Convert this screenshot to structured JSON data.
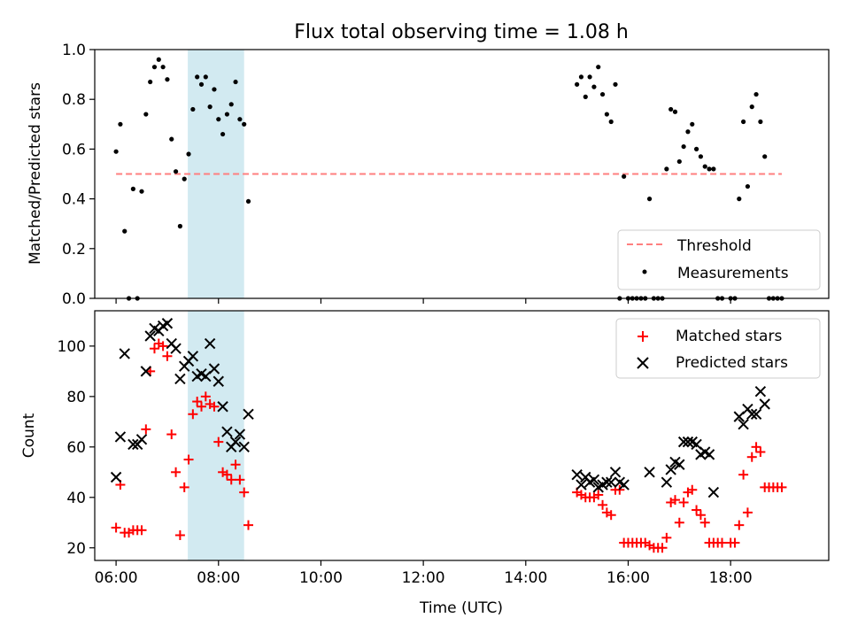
{
  "title": "Flux total observing time = 1.08 h",
  "colors": {
    "threshold": "#ff7f7f",
    "highlight": "#add8e6",
    "matched": "#ff0000",
    "predicted": "#000000",
    "measurement": "#000000"
  },
  "chart_data": [
    {
      "type": "scatter",
      "ylabel": "Matched/Predicted stars",
      "xlim": [
        "05:35",
        "19:55"
      ],
      "ylim": [
        0,
        1.0
      ],
      "y_ticks": [
        "0.0",
        "0.2",
        "0.4",
        "0.6",
        "0.8",
        "1.0"
      ],
      "highlight_span": [
        "07:24",
        "08:30"
      ],
      "legend_position": "bottom-right",
      "threshold": {
        "name": "Threshold",
        "value": 0.5,
        "x": [
          "06:00",
          "19:00"
        ]
      },
      "series": [
        {
          "name": "Measurements",
          "points": [
            [
              "06:00",
              0.59
            ],
            [
              "06:05",
              0.7
            ],
            [
              "06:10",
              0.27
            ],
            [
              "06:15",
              0.0
            ],
            [
              "06:20",
              0.44
            ],
            [
              "06:25",
              0.0
            ],
            [
              "06:30",
              0.43
            ],
            [
              "06:35",
              0.74
            ],
            [
              "06:40",
              0.87
            ],
            [
              "06:45",
              0.93
            ],
            [
              "06:50",
              0.96
            ],
            [
              "06:55",
              0.93
            ],
            [
              "07:00",
              0.88
            ],
            [
              "07:05",
              0.64
            ],
            [
              "07:10",
              0.51
            ],
            [
              "07:15",
              0.29
            ],
            [
              "07:20",
              0.48
            ],
            [
              "07:25",
              0.58
            ],
            [
              "07:30",
              0.76
            ],
            [
              "07:35",
              0.89
            ],
            [
              "07:40",
              0.86
            ],
            [
              "07:45",
              0.89
            ],
            [
              "07:50",
              0.77
            ],
            [
              "07:55",
              0.84
            ],
            [
              "08:00",
              0.72
            ],
            [
              "08:05",
              0.66
            ],
            [
              "08:10",
              0.74
            ],
            [
              "08:15",
              0.78
            ],
            [
              "08:20",
              0.87
            ],
            [
              "08:25",
              0.72
            ],
            [
              "08:30",
              0.7
            ],
            [
              "08:35",
              0.39
            ],
            [
              "15:00",
              0.86
            ],
            [
              "15:05",
              0.89
            ],
            [
              "15:10",
              0.81
            ],
            [
              "15:15",
              0.89
            ],
            [
              "15:20",
              0.85
            ],
            [
              "15:25",
              0.93
            ],
            [
              "15:30",
              0.82
            ],
            [
              "15:35",
              0.74
            ],
            [
              "15:40",
              0.71
            ],
            [
              "15:45",
              0.86
            ],
            [
              "15:50",
              0.0
            ],
            [
              "15:55",
              0.49
            ],
            [
              "16:00",
              0.0
            ],
            [
              "16:05",
              0.0
            ],
            [
              "16:10",
              0.0
            ],
            [
              "16:15",
              0.0
            ],
            [
              "16:20",
              0.0
            ],
            [
              "16:25",
              0.4
            ],
            [
              "16:30",
              0.0
            ],
            [
              "16:35",
              0.0
            ],
            [
              "16:40",
              0.0
            ],
            [
              "16:45",
              0.52
            ],
            [
              "16:50",
              0.76
            ],
            [
              "16:55",
              0.75
            ],
            [
              "17:00",
              0.55
            ],
            [
              "17:05",
              0.61
            ],
            [
              "17:10",
              0.67
            ],
            [
              "17:15",
              0.7
            ],
            [
              "17:20",
              0.6
            ],
            [
              "17:25",
              0.57
            ],
            [
              "17:30",
              0.53
            ],
            [
              "17:35",
              0.52
            ],
            [
              "17:40",
              0.52
            ],
            [
              "17:45",
              0.0
            ],
            [
              "17:50",
              0.0
            ],
            [
              "18:00",
              0.0
            ],
            [
              "18:05",
              0.0
            ],
            [
              "18:10",
              0.4
            ],
            [
              "18:15",
              0.71
            ],
            [
              "18:20",
              0.45
            ],
            [
              "18:25",
              0.77
            ],
            [
              "18:30",
              0.82
            ],
            [
              "18:35",
              0.71
            ],
            [
              "18:40",
              0.57
            ],
            [
              "18:45",
              0.0
            ],
            [
              "18:50",
              0.0
            ],
            [
              "18:55",
              0.0
            ],
            [
              "19:00",
              0.0
            ]
          ]
        }
      ]
    },
    {
      "type": "scatter",
      "xlabel": "Time (UTC)",
      "ylabel": "Count",
      "xlim": [
        "05:35",
        "19:55"
      ],
      "ylim": [
        15,
        114
      ],
      "x_ticks": [
        "06:00",
        "08:00",
        "10:00",
        "12:00",
        "14:00",
        "16:00",
        "18:00"
      ],
      "y_ticks": [
        "20",
        "40",
        "60",
        "80",
        "100"
      ],
      "highlight_span": [
        "07:24",
        "08:30"
      ],
      "legend_position": "top-right",
      "series": [
        {
          "name": "Matched stars",
          "marker": "+",
          "points": [
            [
              "06:00",
              28
            ],
            [
              "06:05",
              45
            ],
            [
              "06:10",
              26
            ],
            [
              "06:15",
              26
            ],
            [
              "06:20",
              27
            ],
            [
              "06:25",
              27
            ],
            [
              "06:30",
              27
            ],
            [
              "06:35",
              67
            ],
            [
              "06:40",
              90
            ],
            [
              "06:45",
              99
            ],
            [
              "06:50",
              101
            ],
            [
              "06:55",
              100
            ],
            [
              "07:00",
              96
            ],
            [
              "07:05",
              65
            ],
            [
              "07:10",
              50
            ],
            [
              "07:15",
              25
            ],
            [
              "07:20",
              44
            ],
            [
              "07:25",
              55
            ],
            [
              "07:30",
              73
            ],
            [
              "07:35",
              78
            ],
            [
              "07:40",
              76
            ],
            [
              "07:45",
              80
            ],
            [
              "07:50",
              77
            ],
            [
              "07:55",
              76
            ],
            [
              "08:00",
              62
            ],
            [
              "08:05",
              50
            ],
            [
              "08:10",
              49
            ],
            [
              "08:15",
              47
            ],
            [
              "08:20",
              53
            ],
            [
              "08:25",
              47
            ],
            [
              "08:30",
              42
            ],
            [
              "08:35",
              29
            ],
            [
              "15:00",
              42
            ],
            [
              "15:05",
              41
            ],
            [
              "15:10",
              40
            ],
            [
              "15:15",
              40
            ],
            [
              "15:20",
              40
            ],
            [
              "15:25",
              41
            ],
            [
              "15:30",
              37
            ],
            [
              "15:35",
              34
            ],
            [
              "15:40",
              33
            ],
            [
              "15:45",
              43
            ],
            [
              "15:50",
              43
            ],
            [
              "15:55",
              22
            ],
            [
              "16:00",
              22
            ],
            [
              "16:05",
              22
            ],
            [
              "16:10",
              22
            ],
            [
              "16:15",
              22
            ],
            [
              "16:20",
              22
            ],
            [
              "16:25",
              21
            ],
            [
              "16:30",
              20
            ],
            [
              "16:35",
              20
            ],
            [
              "16:40",
              20
            ],
            [
              "16:45",
              24
            ],
            [
              "16:50",
              38
            ],
            [
              "16:55",
              39
            ],
            [
              "17:00",
              30
            ],
            [
              "17:05",
              38
            ],
            [
              "17:10",
              42
            ],
            [
              "17:15",
              43
            ],
            [
              "17:20",
              35
            ],
            [
              "17:25",
              33
            ],
            [
              "17:30",
              30
            ],
            [
              "17:35",
              22
            ],
            [
              "17:40",
              22
            ],
            [
              "17:45",
              22
            ],
            [
              "17:50",
              22
            ],
            [
              "18:00",
              22
            ],
            [
              "18:05",
              22
            ],
            [
              "18:10",
              29
            ],
            [
              "18:15",
              49
            ],
            [
              "18:20",
              34
            ],
            [
              "18:25",
              56
            ],
            [
              "18:30",
              60
            ],
            [
              "18:35",
              58
            ],
            [
              "18:40",
              44
            ],
            [
              "18:45",
              44
            ],
            [
              "18:50",
              44
            ],
            [
              "18:55",
              44
            ],
            [
              "19:00",
              44
            ]
          ]
        },
        {
          "name": "Predicted stars",
          "marker": "x",
          "points": [
            [
              "06:00",
              48
            ],
            [
              "06:05",
              64
            ],
            [
              "06:10",
              97
            ],
            [
              "06:20",
              61
            ],
            [
              "06:25",
              61
            ],
            [
              "06:30",
              63
            ],
            [
              "06:35",
              90
            ],
            [
              "06:40",
              104
            ],
            [
              "06:45",
              107
            ],
            [
              "06:50",
              106
            ],
            [
              "06:55",
              108
            ],
            [
              "07:00",
              109
            ],
            [
              "07:05",
              101
            ],
            [
              "07:10",
              99
            ],
            [
              "07:15",
              87
            ],
            [
              "07:20",
              92
            ],
            [
              "07:25",
              94
            ],
            [
              "07:30",
              96
            ],
            [
              "07:35",
              88
            ],
            [
              "07:40",
              89
            ],
            [
              "07:45",
              88
            ],
            [
              "07:50",
              101
            ],
            [
              "07:55",
              91
            ],
            [
              "08:00",
              86
            ],
            [
              "08:05",
              76
            ],
            [
              "08:10",
              66
            ],
            [
              "08:15",
              60
            ],
            [
              "08:20",
              62
            ],
            [
              "08:25",
              65
            ],
            [
              "08:30",
              60
            ],
            [
              "08:35",
              73
            ],
            [
              "15:00",
              49
            ],
            [
              "15:05",
              45
            ],
            [
              "15:10",
              48
            ],
            [
              "15:15",
              46
            ],
            [
              "15:20",
              47
            ],
            [
              "15:25",
              44
            ],
            [
              "15:30",
              45
            ],
            [
              "15:35",
              46
            ],
            [
              "15:40",
              46
            ],
            [
              "15:45",
              50
            ],
            [
              "15:50",
              46
            ],
            [
              "15:55",
              45
            ],
            [
              "16:25",
              50
            ],
            [
              "16:45",
              46
            ],
            [
              "16:50",
              51
            ],
            [
              "16:55",
              54
            ],
            [
              "17:00",
              53
            ],
            [
              "17:05",
              62
            ],
            [
              "17:10",
              62
            ],
            [
              "17:15",
              62
            ],
            [
              "17:20",
              61
            ],
            [
              "17:25",
              57
            ],
            [
              "17:30",
              58
            ],
            [
              "17:35",
              57
            ],
            [
              "17:40",
              42
            ],
            [
              "18:10",
              72
            ],
            [
              "18:15",
              69
            ],
            [
              "18:20",
              75
            ],
            [
              "18:25",
              73
            ],
            [
              "18:30",
              73
            ],
            [
              "18:35",
              82
            ],
            [
              "18:40",
              77
            ]
          ]
        }
      ]
    }
  ]
}
